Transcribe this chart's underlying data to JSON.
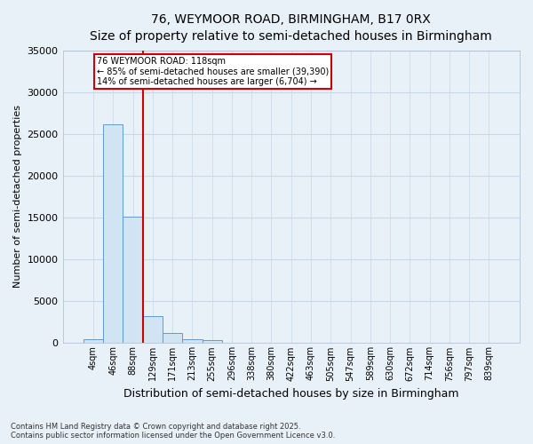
{
  "title_line1": "76, WEYMOOR ROAD, BIRMINGHAM, B17 0RX",
  "title_line2": "Size of property relative to semi-detached houses in Birmingham",
  "xlabel": "Distribution of semi-detached houses by size in Birmingham",
  "ylabel": "Number of semi-detached properties",
  "categories": [
    "4sqm",
    "46sqm",
    "88sqm",
    "129sqm",
    "171sqm",
    "213sqm",
    "255sqm",
    "296sqm",
    "338sqm",
    "380sqm",
    "422sqm",
    "463sqm",
    "505sqm",
    "547sqm",
    "589sqm",
    "630sqm",
    "672sqm",
    "714sqm",
    "756sqm",
    "797sqm",
    "839sqm"
  ],
  "values": [
    500,
    26100,
    15100,
    3200,
    1200,
    450,
    350,
    0,
    0,
    0,
    0,
    0,
    0,
    0,
    0,
    0,
    0,
    0,
    0,
    0,
    0
  ],
  "bar_color": "#d0e4f4",
  "bar_edge_color": "#6699cc",
  "property_line_x": 2.5,
  "annotation_text_line1": "76 WEYMOOR ROAD: 118sqm",
  "annotation_text_line2": "← 85% of semi-detached houses are smaller (39,390)",
  "annotation_text_line3": "14% of semi-detached houses are larger (6,704) →",
  "annotation_box_color": "#ffffff",
  "annotation_box_edge_color": "#cc0000",
  "vline_color": "#cc0000",
  "ylim": [
    0,
    35000
  ],
  "yticks": [
    0,
    5000,
    10000,
    15000,
    20000,
    25000,
    30000,
    35000
  ],
  "grid_color": "#c8d8e8",
  "background_color": "#e8f0f8",
  "footer_line1": "Contains HM Land Registry data © Crown copyright and database right 2025.",
  "footer_line2": "Contains public sector information licensed under the Open Government Licence v3.0."
}
